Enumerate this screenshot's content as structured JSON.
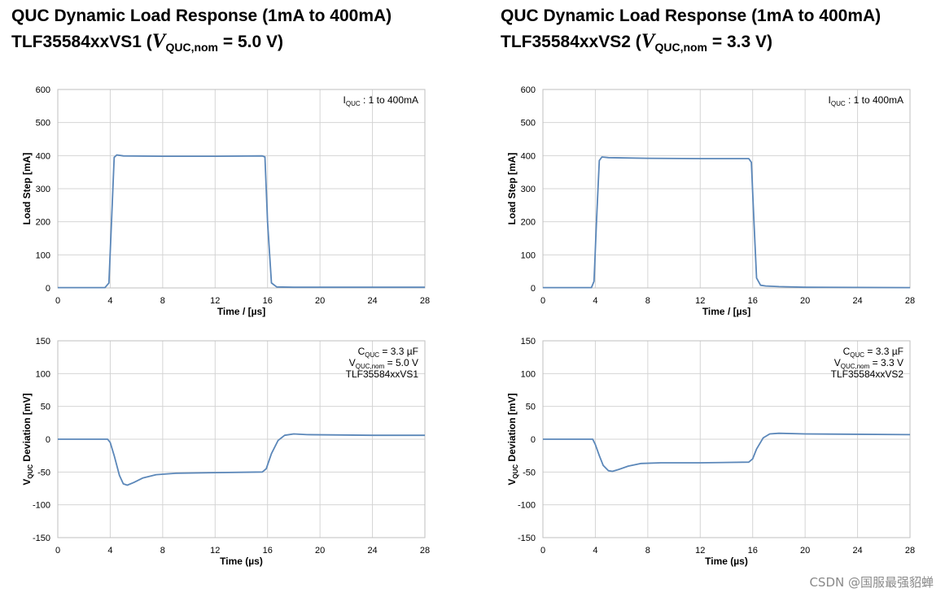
{
  "titles": [
    {
      "line1": "QUC Dynamic Load Response (1mA to 400mA)",
      "part_name": "TLF35584xxVS1",
      "sym": "V",
      "sub": "QUC,nom",
      "tail": " = 5.0 V)"
    },
    {
      "line1": "QUC Dynamic Load Response (1mA to 400mA)",
      "part_name": "TLF35584xxVS2",
      "sym": "V",
      "sub": "QUC,nom",
      "tail": " = 3.3 V)"
    }
  ],
  "watermark": "CSDN @国服最强貂蝉",
  "colors": {
    "line": "#5b87b9",
    "grid": "#d4d4d4",
    "frame": "#bfbfbf"
  },
  "chart_data": [
    {
      "type": "line",
      "ylabel": "Load Step  [mA]",
      "xlabel": "Time / [µs]",
      "xlim": [
        0,
        28
      ],
      "ylim": [
        0,
        600
      ],
      "xticks": [
        0,
        4,
        8,
        12,
        16,
        20,
        24,
        28
      ],
      "yticks": [
        0,
        100,
        200,
        300,
        400,
        500,
        600
      ],
      "grid": true,
      "annotation": [
        {
          "main": "I",
          "sub": "QUC",
          "rest": " :  1 to 400mA"
        }
      ],
      "series": [
        {
          "x": [
            0,
            3.6,
            3.9,
            4.1,
            4.3,
            4.5,
            5,
            8,
            12,
            15.6,
            15.8,
            16,
            16.3,
            16.7,
            18,
            28
          ],
          "y": [
            1,
            1,
            15,
            200,
            395,
            402,
            399,
            398,
            398,
            399,
            396,
            200,
            15,
            3,
            2,
            2
          ]
        }
      ]
    },
    {
      "type": "line",
      "ylabel": "Load Step  [mA]",
      "xlabel": "Time / [µs]",
      "xlim": [
        0,
        28
      ],
      "ylim": [
        0,
        600
      ],
      "xticks": [
        0,
        4,
        8,
        12,
        16,
        20,
        24,
        28
      ],
      "yticks": [
        0,
        100,
        200,
        300,
        400,
        500,
        600
      ],
      "grid": true,
      "annotation": [
        {
          "main": "I",
          "sub": "QUC",
          "rest": " :  1 to 400mA"
        }
      ],
      "series": [
        {
          "x": [
            0,
            3.7,
            3.9,
            4.1,
            4.3,
            4.5,
            5,
            8,
            12,
            15.7,
            15.9,
            16.1,
            16.3,
            16.6,
            17,
            18,
            20,
            28
          ],
          "y": [
            1,
            1,
            20,
            210,
            385,
            396,
            394,
            392,
            391,
            391,
            380,
            200,
            30,
            8,
            6,
            4,
            2,
            1
          ]
        }
      ]
    },
    {
      "type": "line",
      "ylabel_main": "V",
      "ylabel_sub": "QUC",
      "ylabel_rest": "  Deviation  [mV]",
      "xlabel": "Time (µs)",
      "xlim": [
        0,
        28
      ],
      "ylim": [
        -150,
        150
      ],
      "xticks": [
        0,
        4,
        8,
        12,
        16,
        20,
        24,
        28
      ],
      "yticks": [
        -150,
        -100,
        -50,
        0,
        50,
        100,
        150
      ],
      "grid": true,
      "annotation": [
        {
          "main": "C",
          "sub": "QUC",
          "rest": " = 3.3 µF"
        },
        {
          "main": "V",
          "sub": "QUC,nom",
          "rest": " = 5.0 V"
        },
        {
          "main": "",
          "sub": "",
          "rest": "TLF35584xxVS1"
        }
      ],
      "series": [
        {
          "x": [
            0,
            3.8,
            4.0,
            4.3,
            4.7,
            5.0,
            5.3,
            5.8,
            6.5,
            7.5,
            9,
            12,
            15.6,
            15.9,
            16.3,
            16.8,
            17.3,
            18,
            19,
            24,
            28
          ],
          "y": [
            0,
            0,
            -5,
            -25,
            -55,
            -68,
            -70,
            -66,
            -59,
            -54,
            -52,
            -51,
            -50,
            -45,
            -22,
            -2,
            6,
            8,
            7,
            6,
            6
          ]
        }
      ]
    },
    {
      "type": "line",
      "ylabel_main": "V",
      "ylabel_sub": "QUC",
      "ylabel_rest": "  Deviation  [mV]",
      "xlabel": "Time (µs)",
      "xlim": [
        0,
        28
      ],
      "ylim": [
        -150,
        150
      ],
      "xticks": [
        0,
        4,
        8,
        12,
        16,
        20,
        24,
        28
      ],
      "yticks": [
        -150,
        -100,
        -50,
        0,
        50,
        100,
        150
      ],
      "grid": true,
      "annotation": [
        {
          "main": "C",
          "sub": "QUC",
          "rest": " = 3.3 µF"
        },
        {
          "main": "V",
          "sub": "QUC,nom",
          "rest": " = 3.3 V"
        },
        {
          "main": "",
          "sub": "",
          "rest": "TLF35584xxVS2"
        }
      ],
      "series": [
        {
          "x": [
            0,
            3.8,
            4.0,
            4.3,
            4.6,
            5.0,
            5.3,
            5.8,
            6.5,
            7.5,
            9,
            12,
            15.7,
            16.0,
            16.3,
            16.8,
            17.3,
            18,
            20,
            28
          ],
          "y": [
            0,
            0,
            -8,
            -25,
            -40,
            -48,
            -49,
            -46,
            -41,
            -37,
            -36,
            -36,
            -35,
            -30,
            -15,
            2,
            8,
            9,
            8,
            7
          ]
        }
      ]
    }
  ]
}
